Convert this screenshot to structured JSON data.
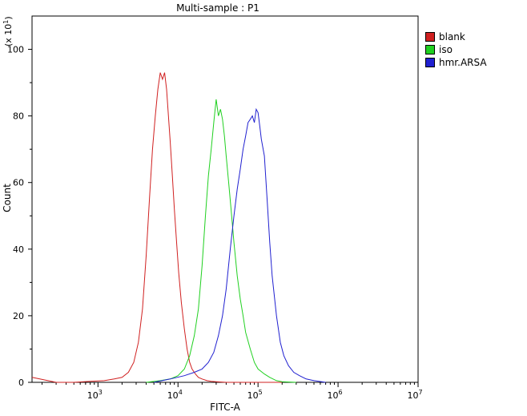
{
  "chart_data": {
    "type": "line",
    "title": "Multi-sample : P1",
    "xlabel": "FITC-A",
    "ylabel": "Count",
    "y_multiplier_label": "(x 10",
    "y_multiplier_exp": "1",
    "x_scale": "log",
    "xlim": [
      150,
      10000000
    ],
    "ylim": [
      0,
      110
    ],
    "y_ticks": [
      0,
      20,
      40,
      60,
      80,
      100
    ],
    "x_tick_labels": [
      {
        "base": "10",
        "exp": "3"
      },
      {
        "base": "10",
        "exp": "4"
      },
      {
        "base": "10",
        "exp": "5"
      },
      {
        "base": "10",
        "exp": "6"
      },
      {
        "base": "10",
        "exp": "7"
      }
    ],
    "x_tick_values": [
      1000,
      10000,
      100000,
      1000000,
      10000000
    ],
    "legend_position": "top-right",
    "series": [
      {
        "name": "blank",
        "color": "#d02020",
        "x": [
          150,
          300,
          500,
          800,
          1200,
          1600,
          2000,
          2400,
          2800,
          3200,
          3600,
          4000,
          4400,
          4800,
          5200,
          5600,
          6000,
          6400,
          6800,
          7200,
          7600,
          8000,
          8500,
          9000,
          9600,
          10200,
          11000,
          12000,
          13000,
          14000,
          15000,
          16500,
          18000,
          20000,
          23000,
          26000,
          30000,
          40000,
          60000,
          100000,
          200000
        ],
        "values": [
          1.5,
          0,
          0,
          0.3,
          0.5,
          1,
          1.5,
          3,
          6,
          12,
          22,
          38,
          55,
          70,
          80,
          88,
          93,
          91,
          93,
          88,
          80,
          72,
          62,
          52,
          42,
          33,
          24,
          16,
          10,
          6,
          4,
          2.5,
          1.5,
          1,
          0.5,
          0.3,
          0.2,
          0,
          0,
          0,
          0
        ]
      },
      {
        "name": "iso",
        "color": "#20d020",
        "x": [
          4000,
          6000,
          8000,
          10000,
          12000,
          14000,
          16000,
          18000,
          20000,
          22000,
          24000,
          26000,
          28000,
          30000,
          32000,
          34000,
          36000,
          38000,
          40000,
          43000,
          46000,
          50000,
          55000,
          60000,
          65000,
          70000,
          80000,
          90000,
          100000,
          120000,
          140000,
          170000,
          200000,
          300000
        ],
        "values": [
          0,
          0.5,
          1,
          2,
          4,
          8,
          14,
          22,
          35,
          50,
          62,
          70,
          78,
          85,
          80,
          82,
          79,
          74,
          68,
          60,
          52,
          42,
          32,
          25,
          20,
          15,
          10,
          6,
          4,
          2.5,
          1.5,
          0.5,
          0.2,
          0
        ]
      },
      {
        "name": "hmr.ARSA",
        "color": "#2020d0",
        "x": [
          5000,
          8000,
          12000,
          16000,
          20000,
          24000,
          28000,
          32000,
          36000,
          40000,
          45000,
          50000,
          55000,
          60000,
          65000,
          70000,
          75000,
          80000,
          85000,
          90000,
          95000,
          100000,
          105000,
          110000,
          120000,
          130000,
          140000,
          150000,
          170000,
          190000,
          210000,
          240000,
          280000,
          330000,
          400000,
          500000,
          700000
        ],
        "values": [
          0,
          1,
          2,
          3,
          4,
          6,
          9,
          14,
          20,
          28,
          40,
          50,
          58,
          64,
          70,
          74,
          78,
          79,
          80,
          78,
          82,
          81,
          77,
          73,
          68,
          55,
          42,
          32,
          20,
          12,
          8,
          5,
          3,
          2,
          1,
          0.5,
          0
        ]
      }
    ]
  }
}
